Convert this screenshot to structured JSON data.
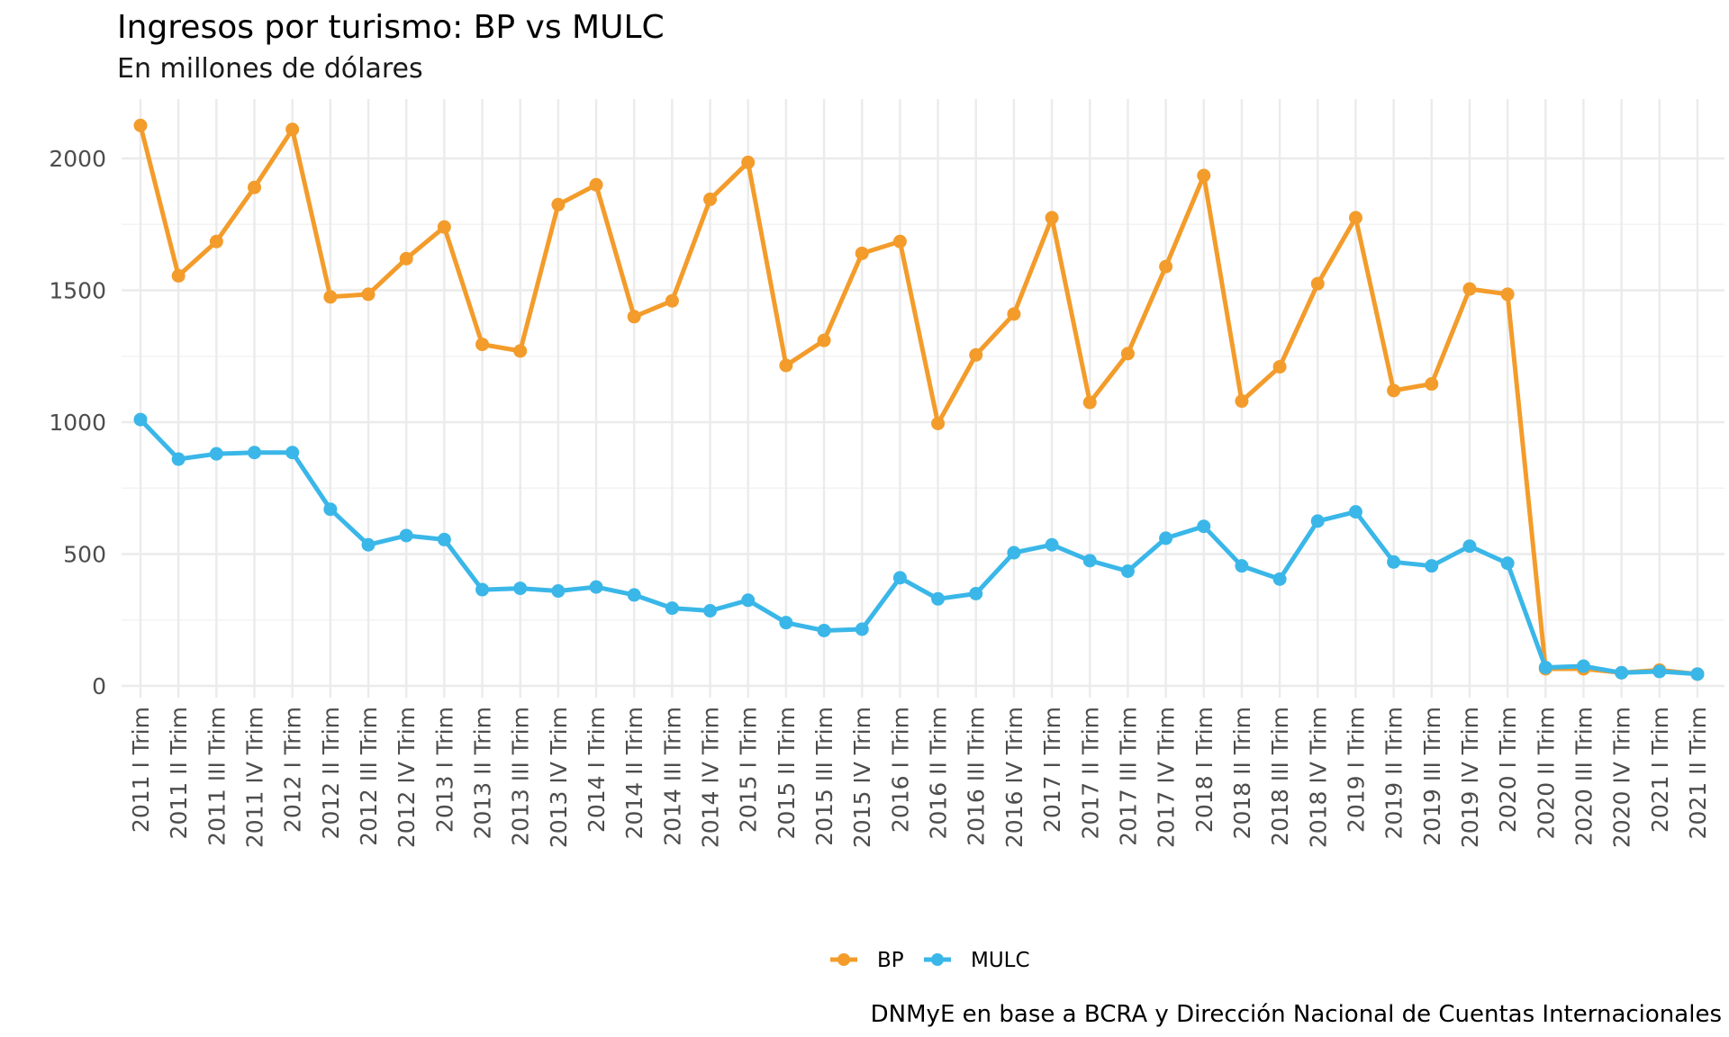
{
  "chart_data": {
    "type": "line",
    "title": "Ingresos por turismo: BP vs MULC",
    "subtitle": "En millones de dólares",
    "caption": "DNMyE en base a BCRA y Dirección Nacional de Cuentas Internacionales",
    "xlabel": "",
    "ylabel": "",
    "ylim": [
      -50,
      2230
    ],
    "yticks": [
      0,
      500,
      1000,
      1500,
      2000
    ],
    "grid": true,
    "legend": "bottom",
    "categories": [
      "2011 I Trim",
      "2011 II Trim",
      "2011 III Trim",
      "2011 IV Trim",
      "2012 I Trim",
      "2012 II Trim",
      "2012 III Trim",
      "2012 IV Trim",
      "2013 I Trim",
      "2013 II Trim",
      "2013 III Trim",
      "2013 IV Trim",
      "2014 I Trim",
      "2014 II Trim",
      "2014 III Trim",
      "2014 IV Trim",
      "2015 I Trim",
      "2015 II Trim",
      "2015 III Trim",
      "2015 IV Trim",
      "2016 I Trim",
      "2016 II Trim",
      "2016 III Trim",
      "2016 IV Trim",
      "2017 I Trim",
      "2017 II Trim",
      "2017 III Trim",
      "2017 IV Trim",
      "2018 I Trim",
      "2018 II Trim",
      "2018 III Trim",
      "2018 IV Trim",
      "2019 I Trim",
      "2019 II Trim",
      "2019 III Trim",
      "2019 IV Trim",
      "2020 I Trim",
      "2020 II Trim",
      "2020 III Trim",
      "2020 IV Trim",
      "2021 I Trim",
      "2021 II Trim"
    ],
    "series": [
      {
        "name": "BP",
        "color": "#f39c2b",
        "values": [
          2125,
          1555,
          1685,
          1890,
          2110,
          1475,
          1485,
          1620,
          1740,
          1295,
          1270,
          1825,
          1900,
          1400,
          1460,
          1845,
          1985,
          1215,
          1310,
          1640,
          1685,
          995,
          1255,
          1410,
          1775,
          1075,
          1260,
          1590,
          1935,
          1080,
          1210,
          1525,
          1775,
          1120,
          1145,
          1505,
          1485,
          65,
          65,
          50,
          60,
          45
        ]
      },
      {
        "name": "MULC",
        "color": "#3ab7e8",
        "values": [
          1010,
          860,
          880,
          885,
          885,
          670,
          535,
          570,
          555,
          365,
          370,
          360,
          375,
          345,
          295,
          285,
          325,
          240,
          210,
          215,
          410,
          330,
          350,
          505,
          535,
          475,
          435,
          560,
          605,
          455,
          405,
          625,
          660,
          470,
          455,
          530,
          465,
          70,
          75,
          50,
          55,
          45
        ]
      }
    ]
  }
}
